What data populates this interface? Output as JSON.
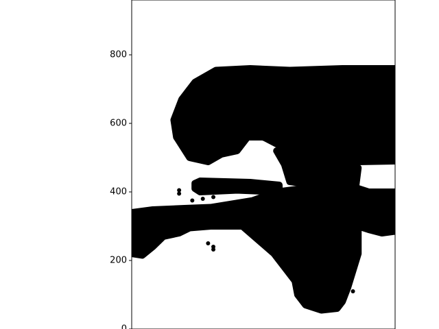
{
  "chart_data": {
    "type": "scatter",
    "title": "",
    "xlabel": "",
    "ylabel": "",
    "ylim": [
      0,
      960
    ],
    "y_ticks": [
      0,
      200,
      400,
      600,
      800
    ],
    "x_ticks": [],
    "grid": false,
    "marker_color": "#000000",
    "regions": [
      {
        "name": "head",
        "polygon": [
          [
            0.17,
            560
          ],
          [
            0.16,
            610
          ],
          [
            0.19,
            670
          ],
          [
            0.24,
            720
          ],
          [
            0.32,
            755
          ],
          [
            0.45,
            760
          ],
          [
            0.6,
            755
          ],
          [
            0.8,
            760
          ],
          [
            1.0,
            760
          ],
          [
            1.0,
            490
          ],
          [
            0.86,
            488
          ],
          [
            0.8,
            510
          ],
          [
            0.72,
            500
          ],
          [
            0.63,
            520
          ],
          [
            0.55,
            540
          ],
          [
            0.5,
            560
          ],
          [
            0.44,
            560
          ],
          [
            0.4,
            520
          ],
          [
            0.34,
            510
          ],
          [
            0.29,
            488
          ],
          [
            0.22,
            500
          ]
        ]
      },
      {
        "name": "neck",
        "polygon": [
          [
            0.55,
            520
          ],
          [
            0.58,
            480
          ],
          [
            0.6,
            430
          ],
          [
            0.7,
            420
          ],
          [
            0.85,
            410
          ],
          [
            0.86,
            470
          ],
          [
            0.8,
            510
          ],
          [
            0.7,
            520
          ]
        ]
      },
      {
        "name": "upper-arm",
        "polygon": [
          [
            0.24,
            425
          ],
          [
            0.26,
            432
          ],
          [
            0.45,
            428
          ],
          [
            0.56,
            420
          ],
          [
            0.56,
            400
          ],
          [
            0.4,
            405
          ],
          [
            0.26,
            400
          ],
          [
            0.24,
            410
          ]
        ]
      },
      {
        "name": "body-and-leg",
        "polygon": [
          [
            0.0,
            340
          ],
          [
            0.08,
            348
          ],
          [
            0.2,
            352
          ],
          [
            0.3,
            355
          ],
          [
            0.46,
            375
          ],
          [
            0.55,
            400
          ],
          [
            0.75,
            420
          ],
          [
            0.86,
            410
          ],
          [
            0.9,
            400
          ],
          [
            1.0,
            400
          ],
          [
            1.0,
            375
          ],
          [
            0.92,
            380
          ],
          [
            0.9,
            370
          ],
          [
            1.0,
            355
          ],
          [
            1.0,
            285
          ],
          [
            0.95,
            280
          ],
          [
            0.9,
            290
          ],
          [
            0.86,
            300
          ],
          [
            0.86,
            220
          ],
          [
            0.84,
            170
          ],
          [
            0.82,
            120
          ],
          [
            0.8,
            80
          ],
          [
            0.78,
            60
          ],
          [
            0.72,
            55
          ],
          [
            0.66,
            70
          ],
          [
            0.63,
            100
          ],
          [
            0.62,
            140
          ],
          [
            0.58,
            180
          ],
          [
            0.54,
            220
          ],
          [
            0.48,
            260
          ],
          [
            0.42,
            300
          ],
          [
            0.3,
            300
          ],
          [
            0.22,
            295
          ],
          [
            0.18,
            280
          ],
          [
            0.12,
            270
          ],
          [
            0.08,
            240
          ],
          [
            0.04,
            215
          ],
          [
            0.0,
            220
          ]
        ]
      },
      {
        "name": "right-spur",
        "polygon": [
          [
            0.9,
            352
          ],
          [
            1.0,
            358
          ],
          [
            1.0,
            372
          ],
          [
            0.9,
            368
          ]
        ]
      }
    ],
    "extra_points": [
      [
        0.18,
        395
      ],
      [
        0.18,
        405
      ],
      [
        0.23,
        375
      ],
      [
        0.27,
        380
      ],
      [
        0.31,
        385
      ],
      [
        0.29,
        250
      ],
      [
        0.31,
        240
      ],
      [
        0.31,
        232
      ],
      [
        0.5,
        555
      ],
      [
        0.54,
        560
      ],
      [
        0.83,
        140
      ],
      [
        0.84,
        160
      ],
      [
        0.84,
        110
      ],
      [
        0.63,
        460
      ],
      [
        0.62,
        470
      ]
    ]
  }
}
